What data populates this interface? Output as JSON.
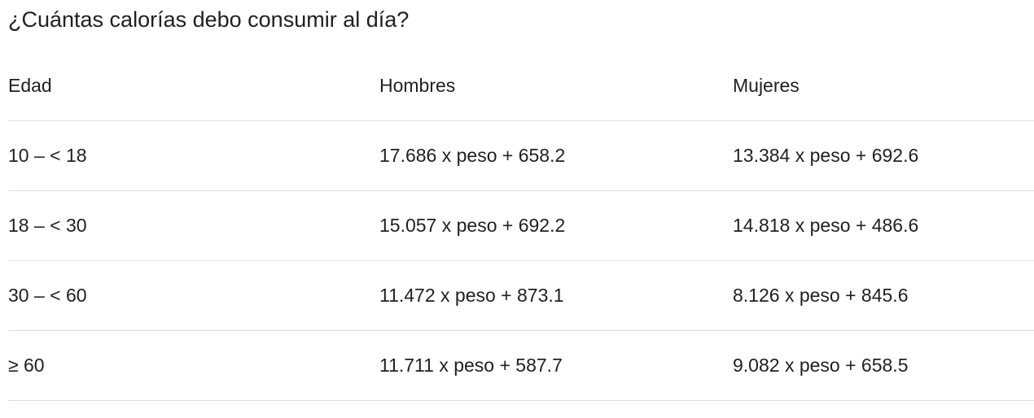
{
  "title": "¿Cuántas calorías debo consumir al día?",
  "table": {
    "headers": [
      "Edad",
      "Hombres",
      "Mujeres"
    ],
    "rows": [
      [
        "10 – < 18",
        "17.686 x peso + 658.2",
        "13.384 x peso + 692.6"
      ],
      [
        "18 – < 30",
        "15.057 x peso + 692.2",
        "14.818 x peso + 486.6"
      ],
      [
        "30 – < 60",
        "11.472 x peso + 873.1",
        "8.126 x peso + 845.6"
      ],
      [
        "≥ 60",
        "11.711 x peso + 587.7",
        "9.082 x peso + 658.5"
      ]
    ]
  }
}
